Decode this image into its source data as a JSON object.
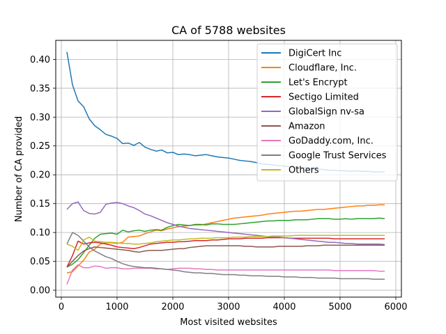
{
  "chart_data": {
    "type": "line",
    "title": "CA of 5788 websites",
    "xlabel": "Most visited websites",
    "ylabel": "Number of CA provided",
    "xlim": [
      -100,
      6100
    ],
    "ylim": [
      -0.012,
      0.433
    ],
    "xticks": [
      0,
      1000,
      2000,
      3000,
      4000,
      5000,
      6000
    ],
    "yticks": [
      0.0,
      0.05,
      0.1,
      0.15,
      0.2,
      0.25,
      0.3,
      0.35,
      0.4
    ],
    "ytick_labels": [
      "0.00",
      "0.05",
      "0.10",
      "0.15",
      "0.20",
      "0.25",
      "0.30",
      "0.35",
      "0.40"
    ],
    "grid": true,
    "legend_position": "top-right",
    "x": [
      100,
      200,
      300,
      400,
      500,
      600,
      700,
      800,
      900,
      1000,
      1100,
      1200,
      1300,
      1400,
      1500,
      1600,
      1700,
      1800,
      1900,
      2000,
      2100,
      2200,
      2300,
      2400,
      2500,
      2600,
      2700,
      2800,
      2900,
      3000,
      3100,
      3200,
      3300,
      3400,
      3500,
      3600,
      3700,
      3800,
      3900,
      4000,
      4100,
      4200,
      4300,
      4400,
      4500,
      4600,
      4700,
      4800,
      4900,
      5000,
      5100,
      5200,
      5300,
      5400,
      5500,
      5600,
      5700,
      5800
    ],
    "series": [
      {
        "name": "DigiCert Inc",
        "color": "#1f77b4",
        "values": [
          0.413,
          0.356,
          0.328,
          0.318,
          0.297,
          0.285,
          0.278,
          0.27,
          0.267,
          0.263,
          0.254,
          0.255,
          0.251,
          0.256,
          0.248,
          0.244,
          0.241,
          0.243,
          0.238,
          0.239,
          0.235,
          0.236,
          0.235,
          0.233,
          0.234,
          0.235,
          0.233,
          0.231,
          0.23,
          0.229,
          0.227,
          0.225,
          0.224,
          0.223,
          0.221,
          0.219,
          0.218,
          0.217,
          0.216,
          0.215,
          0.214,
          0.213,
          0.213,
          0.212,
          0.211,
          0.21,
          0.209,
          0.208,
          0.208,
          0.207,
          0.207,
          0.206,
          0.207,
          0.206,
          0.206,
          0.205,
          0.205,
          0.205
        ]
      },
      {
        "name": "Cloudflare, Inc.",
        "color": "#ff7f0e",
        "values": [
          0.03,
          0.032,
          0.042,
          0.052,
          0.066,
          0.071,
          0.08,
          0.082,
          0.082,
          0.081,
          0.083,
          0.092,
          0.093,
          0.094,
          0.098,
          0.101,
          0.104,
          0.103,
          0.106,
          0.108,
          0.11,
          0.111,
          0.112,
          0.113,
          0.113,
          0.115,
          0.117,
          0.119,
          0.121,
          0.123,
          0.125,
          0.126,
          0.127,
          0.128,
          0.129,
          0.13,
          0.132,
          0.133,
          0.134,
          0.135,
          0.136,
          0.137,
          0.137,
          0.138,
          0.139,
          0.14,
          0.14,
          0.141,
          0.142,
          0.143,
          0.144,
          0.145,
          0.146,
          0.146,
          0.147,
          0.147,
          0.148,
          0.148
        ]
      },
      {
        "name": "Let's Encrypt",
        "color": "#2ca02c",
        "values": [
          0.04,
          0.045,
          0.053,
          0.065,
          0.078,
          0.09,
          0.097,
          0.098,
          0.099,
          0.097,
          0.104,
          0.101,
          0.103,
          0.104,
          0.102,
          0.104,
          0.105,
          0.104,
          0.109,
          0.112,
          0.114,
          0.113,
          0.112,
          0.114,
          0.114,
          0.113,
          0.115,
          0.115,
          0.114,
          0.114,
          0.114,
          0.115,
          0.116,
          0.117,
          0.118,
          0.119,
          0.12,
          0.12,
          0.121,
          0.121,
          0.121,
          0.122,
          0.122,
          0.122,
          0.123,
          0.124,
          0.124,
          0.124,
          0.123,
          0.123,
          0.124,
          0.123,
          0.124,
          0.124,
          0.124,
          0.124,
          0.125,
          0.124
        ]
      },
      {
        "name": "Sectigo Limited",
        "color": "#d62728",
        "values": [
          0.04,
          0.06,
          0.085,
          0.08,
          0.082,
          0.083,
          0.082,
          0.08,
          0.078,
          0.075,
          0.074,
          0.073,
          0.072,
          0.074,
          0.077,
          0.08,
          0.081,
          0.082,
          0.083,
          0.083,
          0.084,
          0.084,
          0.085,
          0.086,
          0.086,
          0.086,
          0.087,
          0.087,
          0.088,
          0.089,
          0.089,
          0.089,
          0.09,
          0.09,
          0.09,
          0.09,
          0.091,
          0.091,
          0.091,
          0.091,
          0.09,
          0.09,
          0.09,
          0.09,
          0.09,
          0.09,
          0.09,
          0.09,
          0.089,
          0.089,
          0.089,
          0.089,
          0.089,
          0.089,
          0.089,
          0.089,
          0.089,
          0.089
        ]
      },
      {
        "name": "GlobalSign nv-sa",
        "color": "#9467bd",
        "values": [
          0.14,
          0.15,
          0.153,
          0.138,
          0.133,
          0.132,
          0.135,
          0.149,
          0.151,
          0.152,
          0.15,
          0.146,
          0.143,
          0.138,
          0.132,
          0.129,
          0.125,
          0.121,
          0.117,
          0.114,
          0.111,
          0.109,
          0.107,
          0.106,
          0.105,
          0.104,
          0.103,
          0.102,
          0.101,
          0.1,
          0.099,
          0.098,
          0.097,
          0.096,
          0.095,
          0.094,
          0.093,
          0.092,
          0.092,
          0.091,
          0.09,
          0.089,
          0.088,
          0.087,
          0.086,
          0.085,
          0.084,
          0.083,
          0.083,
          0.082,
          0.081,
          0.081,
          0.08,
          0.08,
          0.08,
          0.08,
          0.08,
          0.079
        ]
      },
      {
        "name": "Amazon",
        "color": "#8c564b",
        "values": [
          0.04,
          0.05,
          0.06,
          0.068,
          0.072,
          0.075,
          0.074,
          0.073,
          0.072,
          0.071,
          0.07,
          0.069,
          0.067,
          0.066,
          0.068,
          0.069,
          0.069,
          0.069,
          0.07,
          0.071,
          0.072,
          0.072,
          0.074,
          0.075,
          0.076,
          0.077,
          0.077,
          0.077,
          0.077,
          0.077,
          0.077,
          0.077,
          0.076,
          0.076,
          0.075,
          0.075,
          0.075,
          0.075,
          0.076,
          0.076,
          0.076,
          0.076,
          0.076,
          0.077,
          0.077,
          0.077,
          0.078,
          0.078,
          0.078,
          0.078,
          0.078,
          0.078,
          0.078,
          0.078,
          0.078,
          0.078,
          0.078,
          0.078
        ]
      },
      {
        "name": "GoDaddy.com, Inc.",
        "color": "#e377c2",
        "values": [
          0.01,
          0.035,
          0.044,
          0.039,
          0.039,
          0.042,
          0.041,
          0.038,
          0.039,
          0.039,
          0.037,
          0.037,
          0.038,
          0.038,
          0.038,
          0.038,
          0.037,
          0.037,
          0.036,
          0.037,
          0.038,
          0.038,
          0.038,
          0.037,
          0.037,
          0.036,
          0.036,
          0.035,
          0.035,
          0.035,
          0.035,
          0.035,
          0.035,
          0.035,
          0.035,
          0.035,
          0.035,
          0.035,
          0.035,
          0.035,
          0.035,
          0.035,
          0.035,
          0.035,
          0.035,
          0.035,
          0.035,
          0.035,
          0.034,
          0.034,
          0.034,
          0.034,
          0.034,
          0.034,
          0.034,
          0.034,
          0.033,
          0.033
        ]
      },
      {
        "name": "Google Trust Services",
        "color": "#7f7f7f",
        "values": [
          0.08,
          0.1,
          0.095,
          0.085,
          0.075,
          0.068,
          0.063,
          0.058,
          0.055,
          0.05,
          0.046,
          0.043,
          0.041,
          0.04,
          0.039,
          0.039,
          0.038,
          0.037,
          0.036,
          0.035,
          0.034,
          0.032,
          0.031,
          0.03,
          0.03,
          0.029,
          0.029,
          0.028,
          0.027,
          0.027,
          0.027,
          0.026,
          0.026,
          0.025,
          0.025,
          0.025,
          0.024,
          0.024,
          0.024,
          0.023,
          0.023,
          0.023,
          0.022,
          0.022,
          0.022,
          0.021,
          0.021,
          0.021,
          0.021,
          0.02,
          0.02,
          0.02,
          0.02,
          0.02,
          0.02,
          0.019,
          0.019,
          0.019
        ]
      },
      {
        "name": "Others",
        "color": "#bcbd22",
        "values": [
          0.08,
          0.076,
          0.069,
          0.087,
          0.092,
          0.085,
          0.084,
          0.083,
          0.083,
          0.082,
          0.081,
          0.081,
          0.08,
          0.08,
          0.081,
          0.082,
          0.084,
          0.085,
          0.086,
          0.087,
          0.087,
          0.088,
          0.089,
          0.089,
          0.09,
          0.09,
          0.09,
          0.091,
          0.091,
          0.091,
          0.092,
          0.092,
          0.092,
          0.093,
          0.093,
          0.093,
          0.093,
          0.094,
          0.094,
          0.094,
          0.094,
          0.095,
          0.095,
          0.095,
          0.095,
          0.095,
          0.095,
          0.095,
          0.095,
          0.095,
          0.095,
          0.095,
          0.095,
          0.095,
          0.095,
          0.095,
          0.095,
          0.095
        ]
      }
    ]
  }
}
